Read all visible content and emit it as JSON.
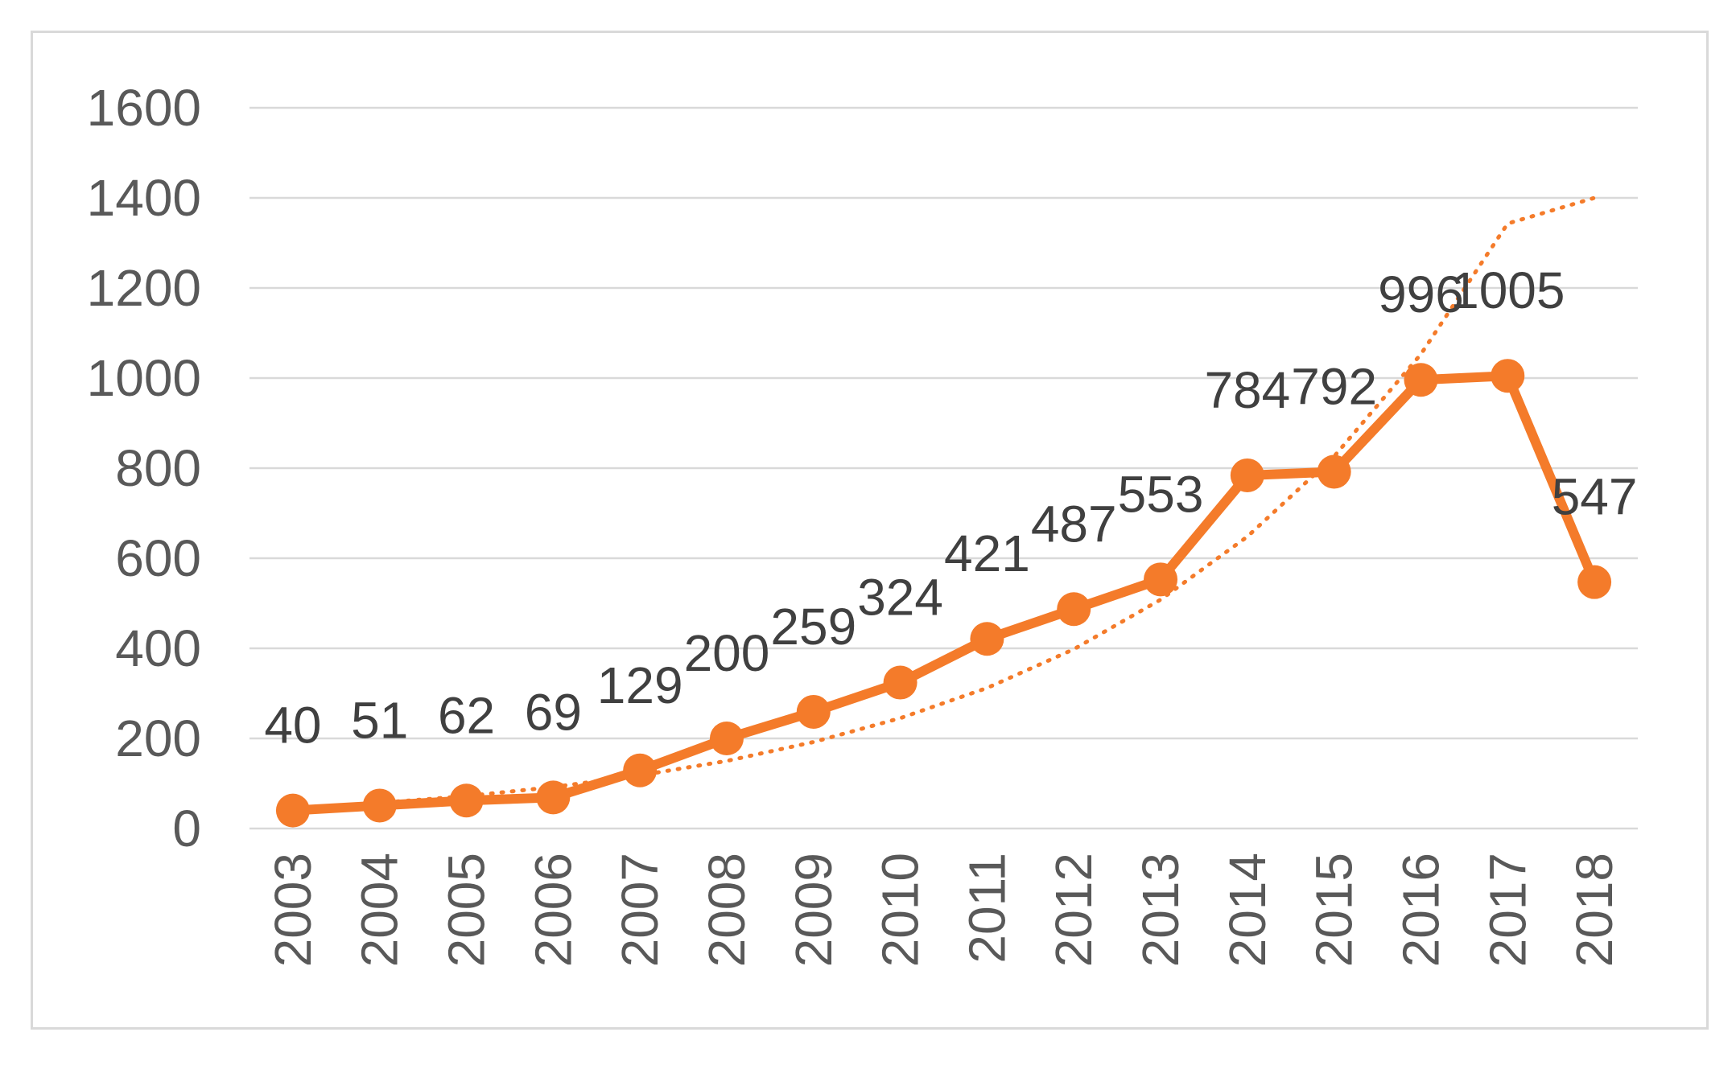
{
  "chart_data": {
    "type": "line",
    "title": "",
    "xlabel": "",
    "ylabel": "",
    "categories": [
      "2003",
      "2004",
      "2005",
      "2006",
      "2007",
      "2008",
      "2009",
      "2010",
      "2011",
      "2012",
      "2013",
      "2014",
      "2015",
      "2016",
      "2017",
      "2018"
    ],
    "series": [
      {
        "values": [
          40,
          51,
          62,
          69,
          129,
          200,
          259,
          324,
          421,
          487,
          553,
          784,
          792,
          996,
          1005,
          547
        ],
        "color": "#f47b2a",
        "marker": "circle",
        "data_labels": true
      }
    ],
    "trendline": {
      "type": "exponential",
      "style": "dotted",
      "color": "#f47b2a",
      "values": [
        44,
        57,
        72,
        92,
        118,
        150,
        192,
        245,
        312,
        398,
        508,
        648,
        826,
        1053,
        1343,
        1400
      ]
    },
    "ylim": [
      0,
      1600
    ],
    "yticks": [
      0,
      200,
      400,
      600,
      800,
      1000,
      1200,
      1400,
      1600
    ],
    "grid": true,
    "legend": "none",
    "x_tick_rotation": "vertical"
  }
}
